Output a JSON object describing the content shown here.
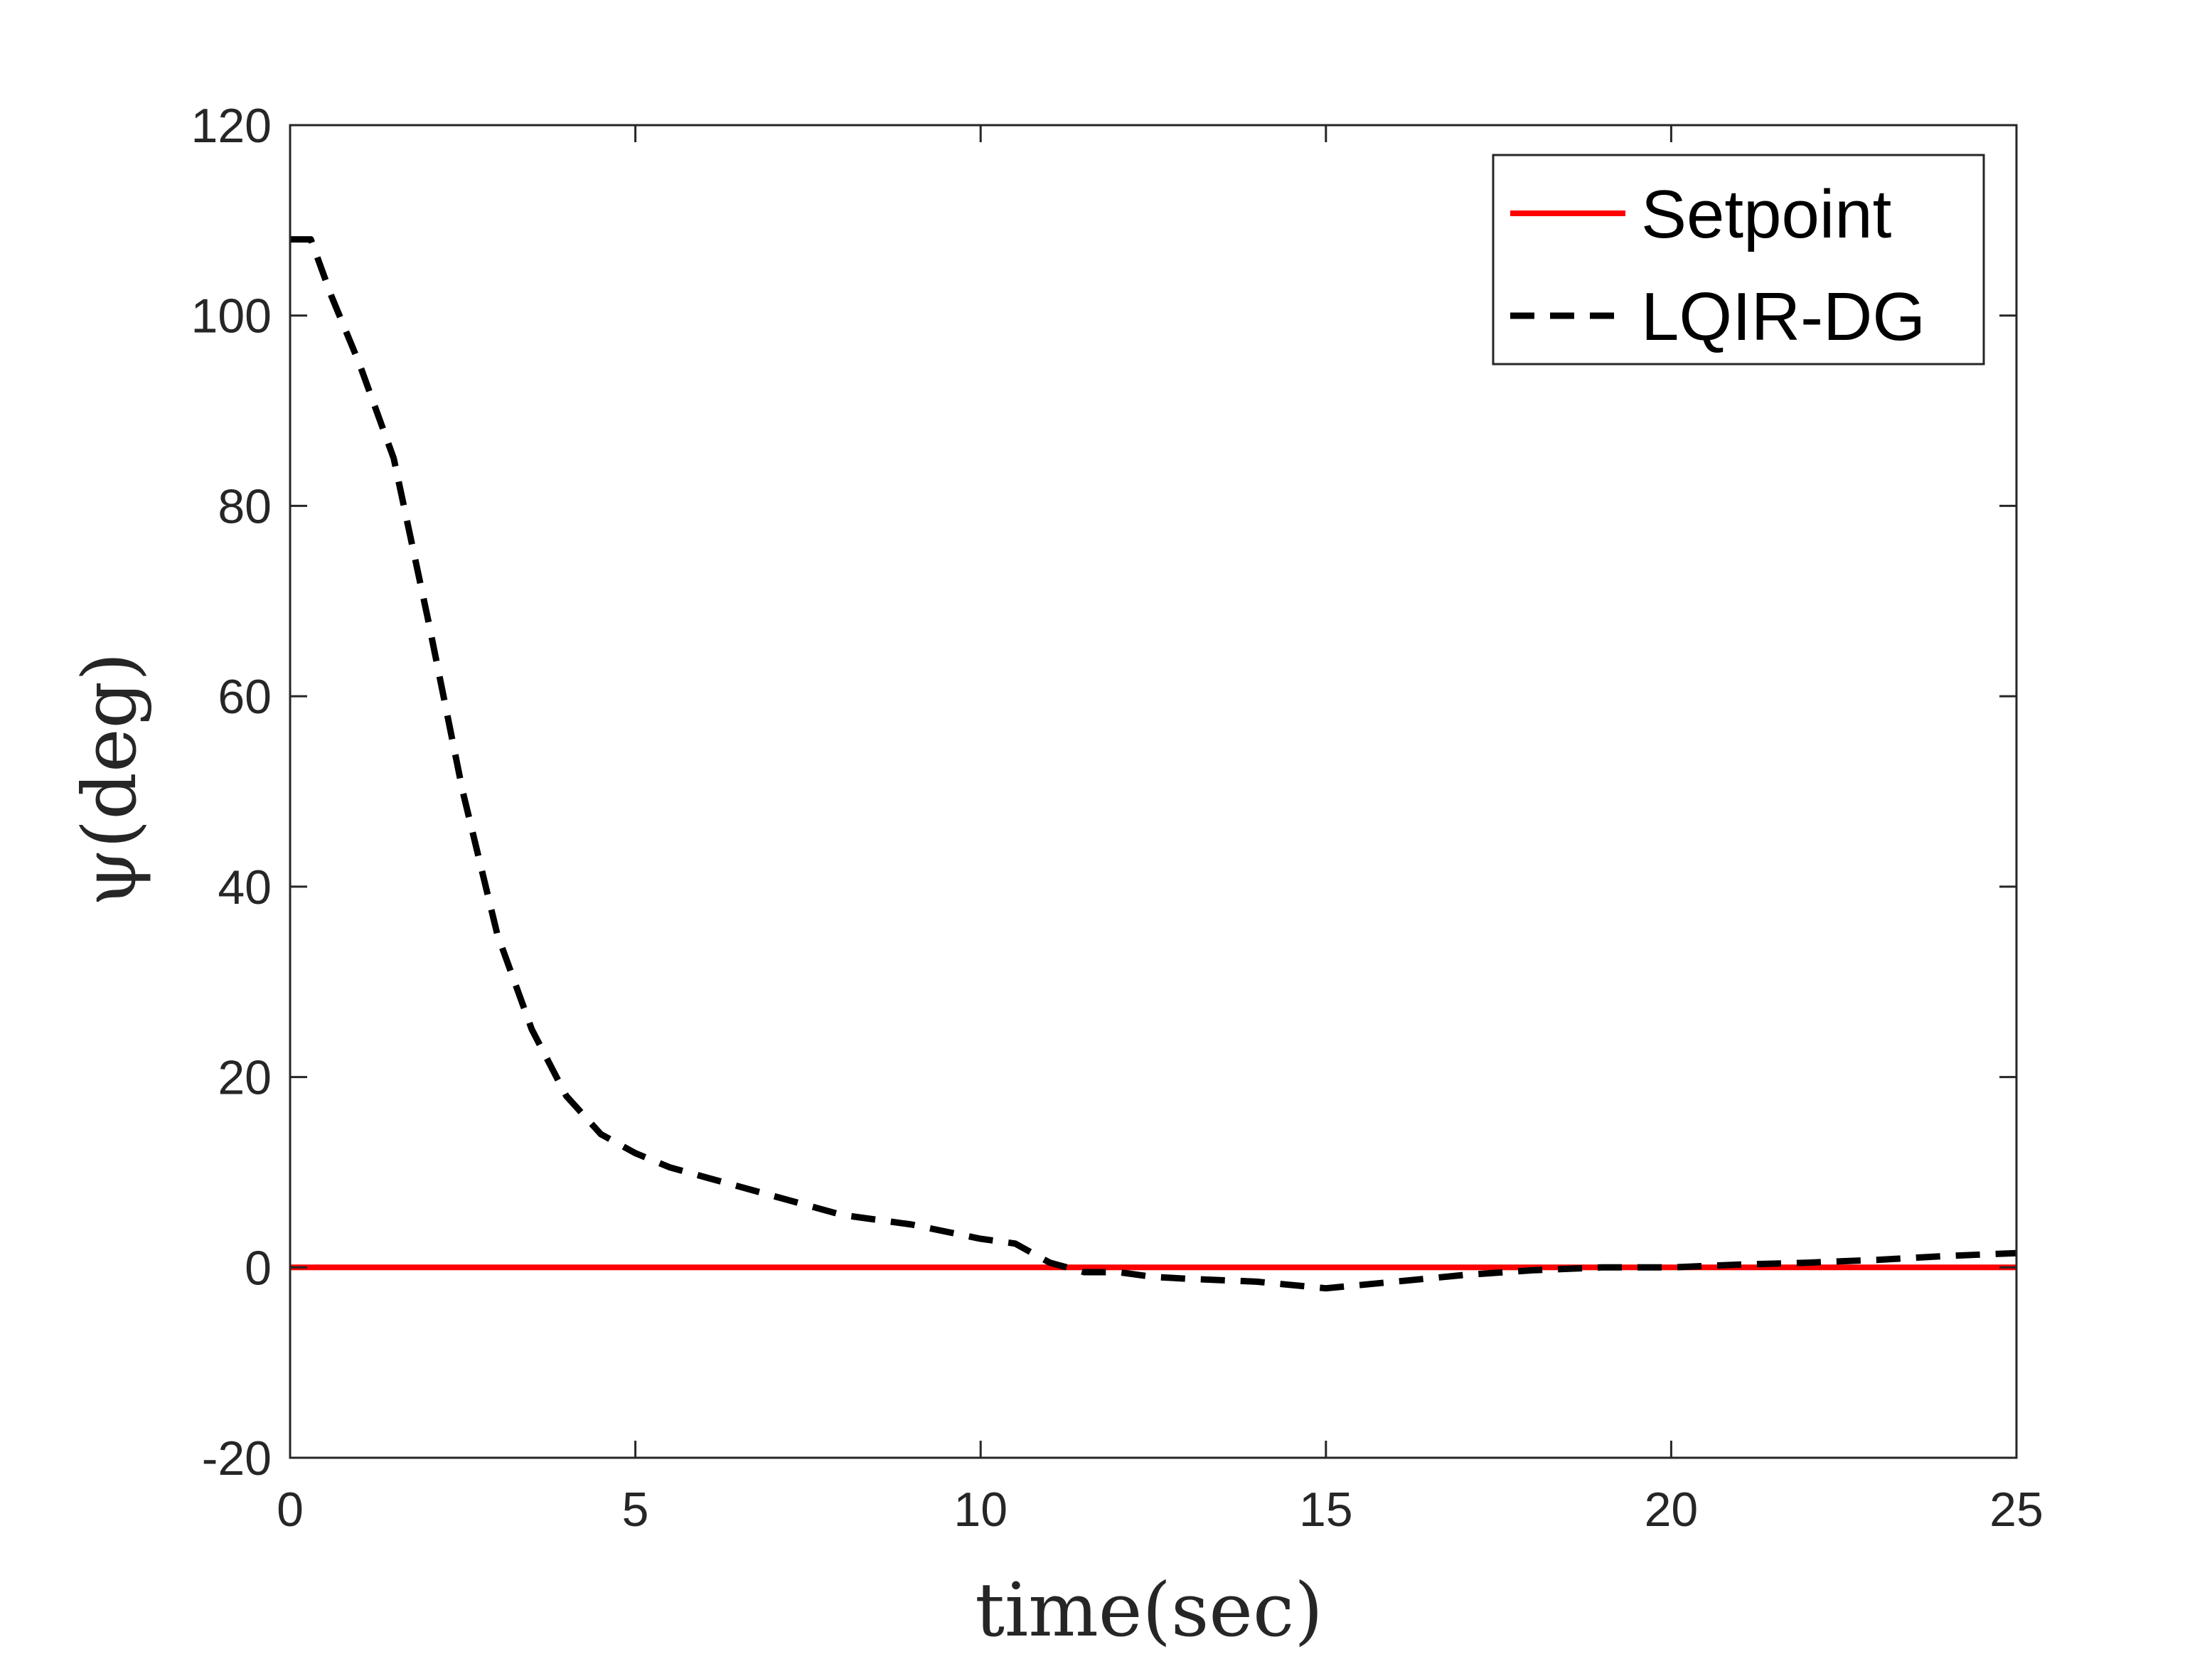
{
  "chart_data": {
    "type": "line",
    "xlabel": "time(sec)",
    "ylabel": "ψ(deg)",
    "xlim": [
      0,
      25
    ],
    "ylim": [
      -20,
      120
    ],
    "xticks": [
      0,
      5,
      10,
      15,
      20,
      25
    ],
    "yticks": [
      -20,
      0,
      20,
      40,
      60,
      80,
      100,
      120
    ],
    "grid": false,
    "legend_position": "top-right",
    "series": [
      {
        "name": "Setpoint",
        "color": "#ff0000",
        "style": "solid",
        "x": [
          0,
          25
        ],
        "y": [
          0,
          0
        ]
      },
      {
        "name": "LQIR-DG",
        "color": "#000000",
        "style": "dashed",
        "x": [
          0,
          0.3,
          0.6,
          1.0,
          1.5,
          2.0,
          2.5,
          3.0,
          3.5,
          4.0,
          4.5,
          5.0,
          5.5,
          6.0,
          7.0,
          8.0,
          9.0,
          10.0,
          10.5,
          11.0,
          11.5,
          12.0,
          12.5,
          13.0,
          14.0,
          15.0,
          16.0,
          17.0,
          18.0,
          19.0,
          20.0,
          21.0,
          22.0,
          23.0,
          24.0,
          25.0
        ],
        "y": [
          108,
          108,
          102,
          95,
          85,
          68,
          50,
          35,
          25,
          18,
          14,
          12,
          10.5,
          9.5,
          7.5,
          5.5,
          4.5,
          3,
          2.5,
          0.5,
          -0.5,
          -0.5,
          -1,
          -1.2,
          -1.5,
          -2.2,
          -1.5,
          -0.8,
          -0.3,
          0,
          0,
          0.3,
          0.5,
          0.8,
          1.2,
          1.5
        ]
      }
    ]
  }
}
